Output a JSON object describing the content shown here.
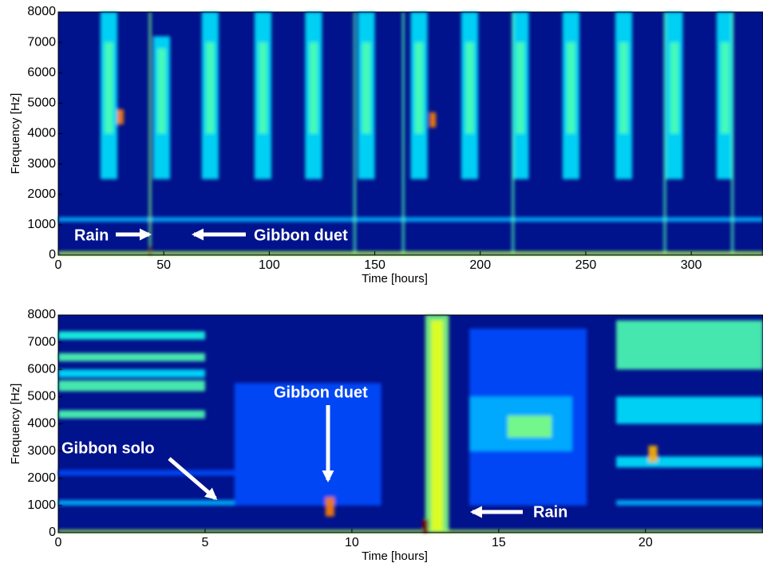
{
  "chart_data": [
    {
      "type": "spectrogram",
      "colormap": "jet",
      "background": "#00128c",
      "xlabel": "Time [hours]",
      "ylabel": "Frequency [Hz]",
      "xlim": [
        0,
        334
      ],
      "ylim": [
        0,
        8000
      ],
      "xticks": [
        0,
        50,
        100,
        150,
        200,
        250,
        300
      ],
      "yticks": [
        0,
        1000,
        2000,
        3000,
        4000,
        5000,
        6000,
        7000,
        8000
      ],
      "cells": [
        [
          0,
          334,
          1100,
          1250,
          0.3
        ],
        [
          20,
          28,
          2500,
          8000,
          0.35
        ],
        [
          22,
          26,
          4000,
          7000,
          0.45
        ],
        [
          45,
          53,
          2500,
          7200,
          0.35
        ],
        [
          47,
          51,
          4000,
          6800,
          0.45
        ],
        [
          68,
          76,
          2500,
          8000,
          0.35
        ],
        [
          70,
          74,
          4000,
          7000,
          0.45
        ],
        [
          93,
          101,
          2500,
          8000,
          0.35
        ],
        [
          95,
          99,
          4000,
          7000,
          0.45
        ],
        [
          117,
          125,
          2500,
          8000,
          0.35
        ],
        [
          119,
          123,
          4000,
          7000,
          0.45
        ],
        [
          142,
          150,
          2500,
          8000,
          0.35
        ],
        [
          144,
          148,
          4000,
          7000,
          0.45
        ],
        [
          167,
          175,
          2500,
          8000,
          0.35
        ],
        [
          169,
          173,
          4000,
          7000,
          0.45
        ],
        [
          191,
          199,
          2500,
          8000,
          0.35
        ],
        [
          193,
          197,
          4000,
          7000,
          0.45
        ],
        [
          215,
          223,
          2500,
          8000,
          0.35
        ],
        [
          217,
          221,
          4000,
          7000,
          0.45
        ],
        [
          239,
          247,
          2500,
          8000,
          0.35
        ],
        [
          241,
          245,
          4000,
          7000,
          0.45
        ],
        [
          264,
          272,
          2500,
          8000,
          0.35
        ],
        [
          266,
          270,
          4000,
          7000,
          0.45
        ],
        [
          288,
          296,
          2500,
          8000,
          0.35
        ],
        [
          290,
          294,
          4000,
          7000,
          0.45
        ],
        [
          312,
          320,
          2500,
          8000,
          0.35
        ],
        [
          314,
          318,
          4000,
          7000,
          0.45
        ],
        [
          28,
          31,
          4300,
          4800,
          0.75
        ],
        [
          176,
          179,
          4200,
          4700,
          0.75
        ],
        [
          43,
          44,
          0,
          8000,
          0.5
        ],
        [
          140,
          141,
          0,
          8000,
          0.45
        ],
        [
          163,
          164,
          0,
          8000,
          0.45
        ],
        [
          215,
          216,
          0,
          8000,
          0.45
        ],
        [
          287,
          288,
          0,
          8000,
          0.45
        ],
        [
          319,
          320,
          0,
          8000,
          0.45
        ],
        [
          0,
          334,
          0,
          120,
          0.55
        ],
        [
          43,
          44,
          0,
          300,
          1
        ]
      ],
      "annotations": [
        "Rain",
        "Gibbon duet"
      ]
    },
    {
      "type": "spectrogram",
      "colormap": "jet",
      "background": "#00128c",
      "xlabel": "Time [hours]",
      "ylabel": "Frequency [Hz]",
      "xlim": [
        0,
        24
      ],
      "ylim": [
        0,
        8000
      ],
      "xticks": [
        0,
        5,
        10,
        15,
        20
      ],
      "yticks": [
        0,
        1000,
        2000,
        3000,
        4000,
        5000,
        6000,
        7000,
        8000
      ],
      "cells": [
        [
          0,
          5,
          4200,
          4500,
          0.45
        ],
        [
          0,
          5,
          5200,
          5600,
          0.45
        ],
        [
          0,
          5,
          6300,
          6600,
          0.45
        ],
        [
          0,
          5,
          7100,
          7400,
          0.4
        ],
        [
          0,
          5,
          5700,
          6000,
          0.35
        ],
        [
          0,
          6,
          1000,
          1200,
          0.3
        ],
        [
          0,
          6,
          2100,
          2300,
          0.2
        ],
        [
          6,
          11,
          1000,
          5500,
          0.2
        ],
        [
          14,
          18,
          1000,
          7500,
          0.2
        ],
        [
          14,
          17.5,
          3000,
          5000,
          0.3
        ],
        [
          15.3,
          16.8,
          3500,
          4300,
          0.5
        ],
        [
          19,
          24,
          1000,
          1200,
          0.3
        ],
        [
          19,
          24,
          2400,
          2800,
          0.35
        ],
        [
          19,
          24,
          4000,
          5000,
          0.35
        ],
        [
          19,
          24,
          6000,
          7800,
          0.45
        ],
        [
          20.1,
          20.4,
          2600,
          3200,
          0.7
        ],
        [
          9.1,
          9.4,
          600,
          1300,
          0.75
        ],
        [
          12.5,
          13.3,
          0,
          8000,
          0.5
        ],
        [
          12.7,
          13.1,
          0,
          7800,
          0.6
        ],
        [
          0,
          24,
          0,
          100,
          0.55
        ],
        [
          12.4,
          12.6,
          0,
          500,
          1
        ]
      ],
      "annotations": [
        "Gibbon solo",
        "Gibbon duet",
        "Rain"
      ]
    }
  ]
}
